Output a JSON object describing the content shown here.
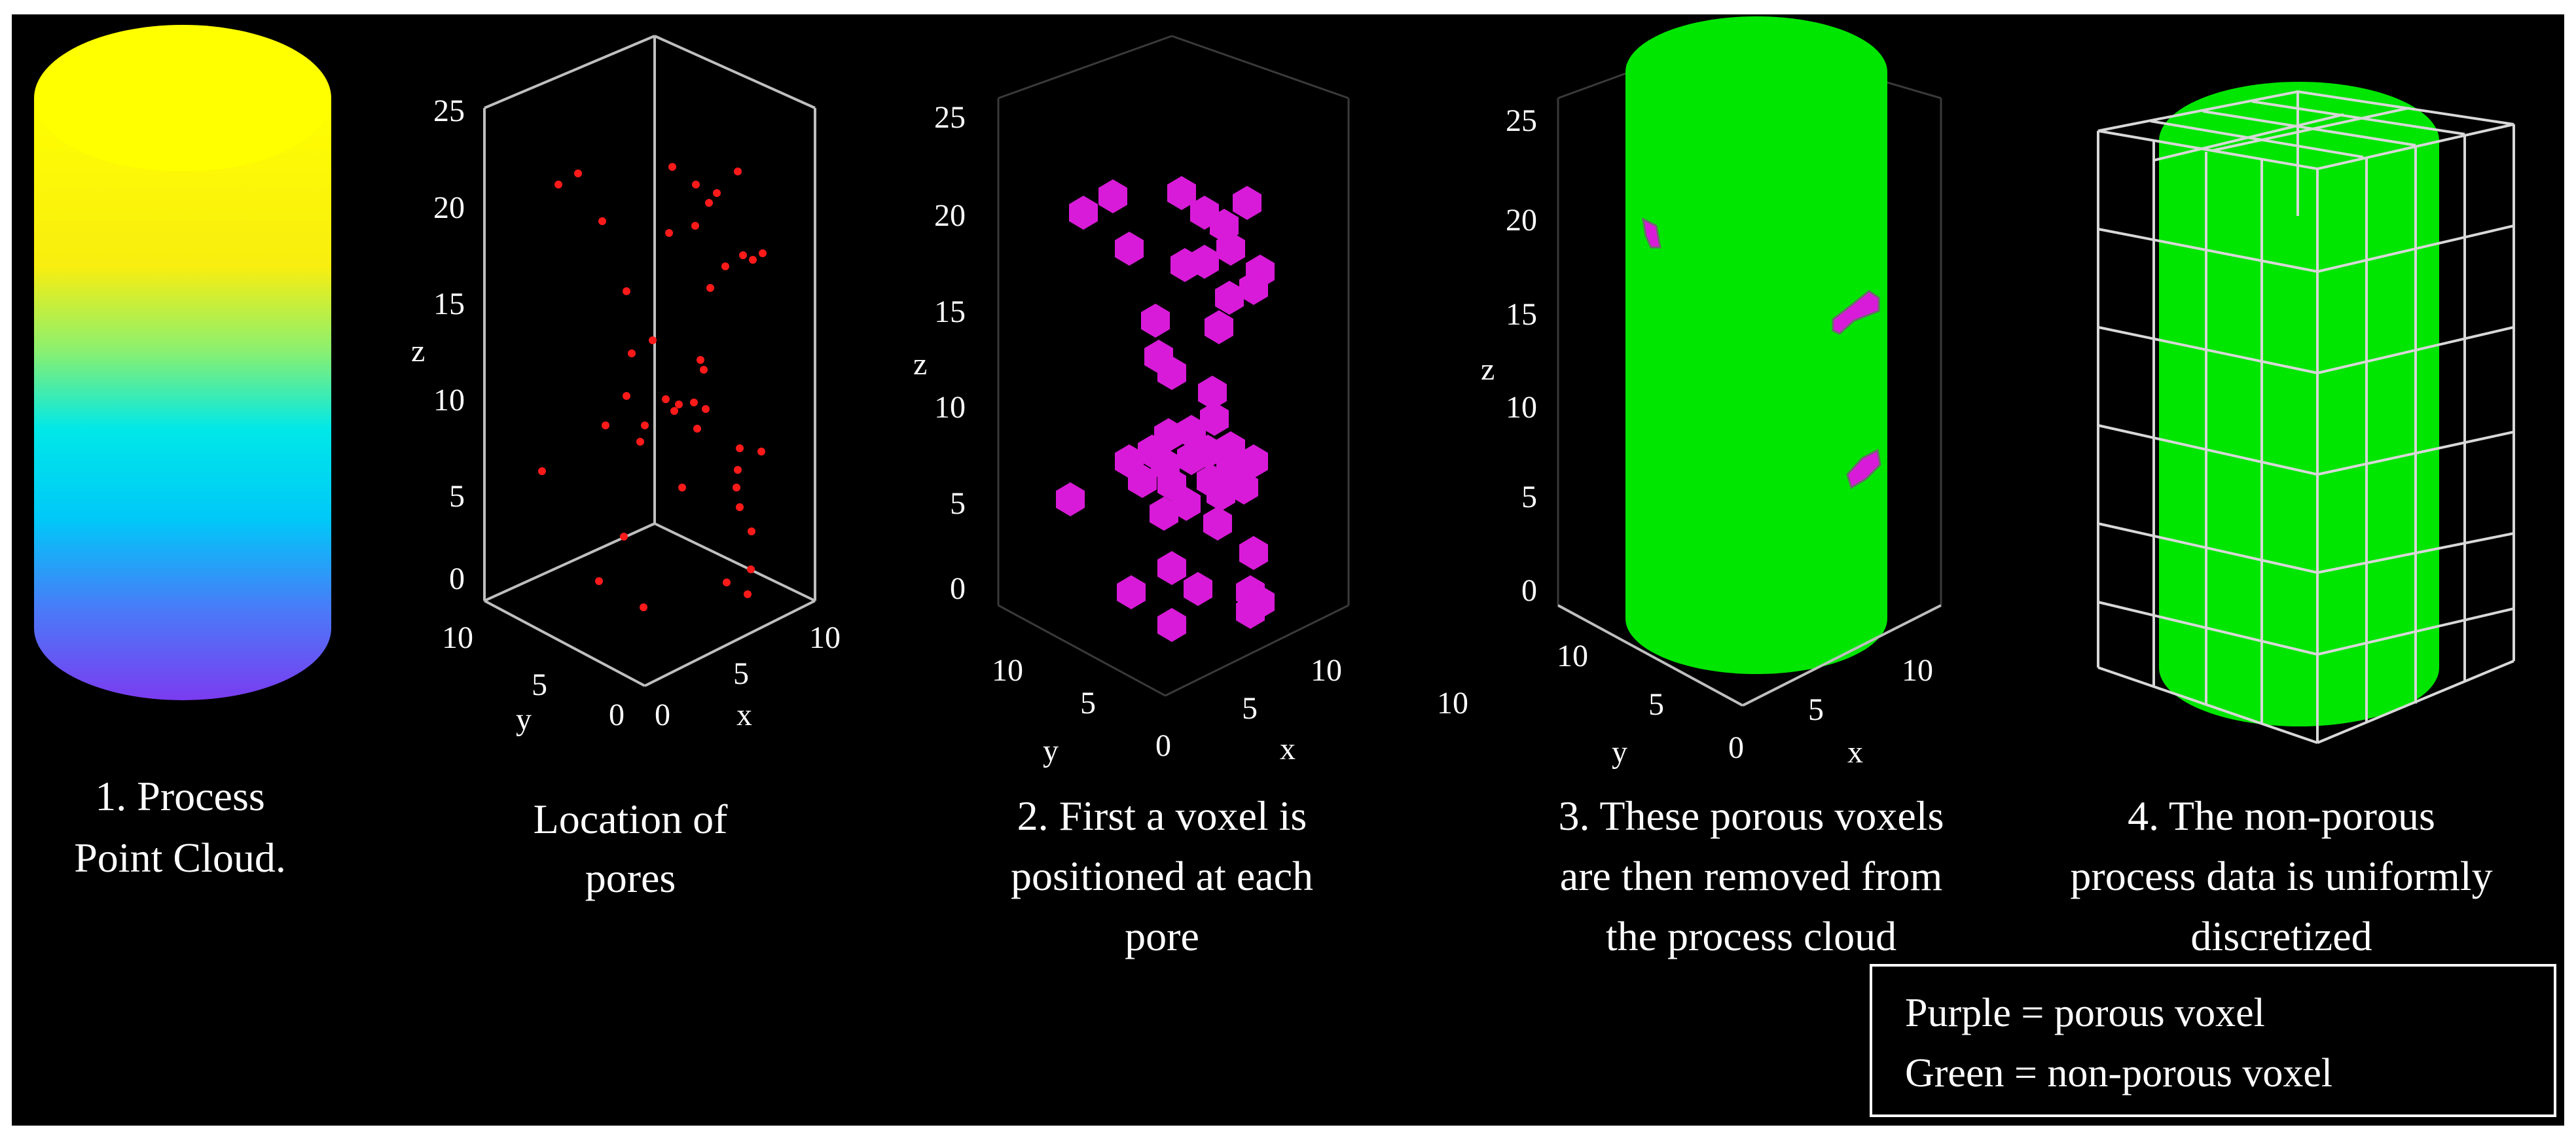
{
  "panels": [
    {
      "id": "point-cloud",
      "caption": [
        "1. Process",
        "Point Cloud."
      ]
    },
    {
      "id": "pores",
      "caption": [
        "Location of",
        "pores"
      ],
      "z_ticks": [
        "0",
        "5",
        "10",
        "15",
        "20",
        "25"
      ],
      "x_ticks": [
        "0",
        "5",
        "10"
      ],
      "y_ticks": [
        "0",
        "5",
        "10"
      ],
      "xlabel": "x",
      "ylabel": "y",
      "zlabel": "z"
    },
    {
      "id": "voxels",
      "caption": [
        "2. First a voxel is",
        "positioned at each",
        "pore"
      ],
      "z_ticks": [
        "0",
        "5",
        "10",
        "15",
        "20",
        "25"
      ],
      "x_ticks": [
        "5",
        "10"
      ],
      "y_ticks": [
        "0",
        "5",
        "10"
      ],
      "xlabel": "x",
      "ylabel": "y",
      "zlabel": "z"
    },
    {
      "id": "removed",
      "caption": [
        "3. These porous voxels",
        "are then removed from",
        "the process cloud"
      ],
      "z_ticks": [
        "0",
        "5",
        "10",
        "15",
        "20",
        "25"
      ],
      "x_ticks": [
        "5",
        "10"
      ],
      "y_ticks": [
        "0",
        "5",
        "10"
      ],
      "extra_tick": "10",
      "xlabel": "x",
      "ylabel": "y",
      "zlabel": "z"
    },
    {
      "id": "discretized",
      "caption": [
        "4. The non-porous",
        "process data is uniformly",
        "discretized"
      ]
    }
  ],
  "legend": {
    "line1": "Purple = porous voxel",
    "line2": "Green = non-porous voxel"
  },
  "colors": {
    "background": "#000000",
    "porous": "#d81bd8",
    "non_porous": "#00e600",
    "pore_point": "#ff1a1a",
    "cylinder_top": "#ffff00",
    "cylinder_mid": "#00e5f0",
    "cylinder_bottom": "#6a3cf0"
  }
}
